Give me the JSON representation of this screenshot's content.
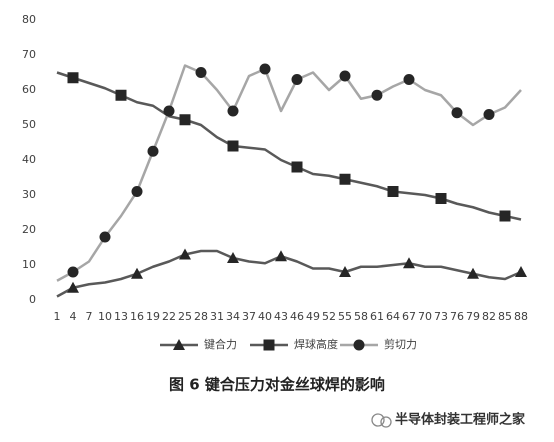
{
  "chart_data": {
    "type": "line",
    "categories": [
      "1",
      "4",
      "7",
      "10",
      "13",
      "16",
      "19",
      "22",
      "25",
      "28",
      "31",
      "34",
      "37",
      "40",
      "43",
      "46",
      "49",
      "52",
      "55",
      "58",
      "61",
      "64",
      "67",
      "70",
      "73",
      "76",
      "79",
      "82",
      "85",
      "88"
    ],
    "series": [
      {
        "name": "键合力",
        "color": "#595959",
        "marker": "triangle",
        "values": [
          1,
          3.5,
          4.5,
          5,
          6,
          7.5,
          9.5,
          11,
          13,
          14,
          14,
          12,
          11,
          10.5,
          12.5,
          11,
          9,
          9,
          8,
          9.5,
          9.5,
          10,
          10.5,
          9.5,
          9.5,
          8.5,
          7.5,
          6.5,
          6,
          8
        ]
      },
      {
        "name": "焊球高度",
        "color": "#595959",
        "marker": "square",
        "values": [
          65,
          63.5,
          62,
          60.5,
          58.5,
          56.5,
          55.5,
          52.5,
          51.5,
          50,
          46.5,
          44,
          43.5,
          43,
          40,
          38,
          36,
          35.5,
          34.5,
          33.5,
          32.5,
          31,
          30.5,
          30,
          29,
          27.5,
          26.5,
          25,
          24,
          23
        ]
      },
      {
        "name": "剪切力",
        "color": "#a6a6a6",
        "marker": "circle",
        "values": [
          5.5,
          8,
          11,
          18,
          24,
          31,
          42.5,
          54,
          67,
          65,
          60,
          54,
          64,
          66,
          54,
          63,
          65,
          60,
          64,
          57.5,
          58.5,
          61,
          63,
          60,
          58.5,
          53.5,
          50,
          53,
          55,
          60
        ]
      }
    ],
    "ylim": [
      0,
      80
    ],
    "yticks": [
      0,
      10,
      20,
      30,
      40,
      50,
      60,
      70,
      80
    ],
    "grid": false,
    "legend": "bottom",
    "caption": "图 6  键合压力对金丝球焊的影响"
  },
  "watermark": "半导体封装工程师之家"
}
